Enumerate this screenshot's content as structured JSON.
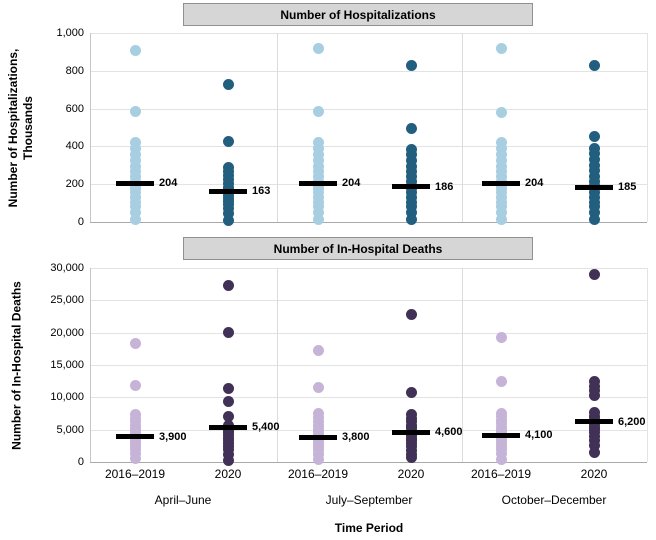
{
  "xaxis": {
    "title": "Time Period",
    "tick_labels": [
      "2016–2019",
      "2020",
      "2016–2019",
      "2020",
      "2016–2019",
      "2020"
    ],
    "group_labels": [
      "April–June",
      "July–September",
      "October–December"
    ]
  },
  "colors": {
    "light_blue": "#A8CEE2",
    "dark_blue": "#225F7E",
    "light_purple": "#C6B4D8",
    "dark_purple": "#413156",
    "median_line": "#000000",
    "title_box_fill": "#D6D6D6",
    "title_box_border": "#909090"
  },
  "chart_data": [
    {
      "type": "scatter",
      "subtype": "strip-dot-plot",
      "title": "Number of Hospitalizations",
      "ylabel_lines": [
        "Number of Hospitalizations,",
        "Thousands"
      ],
      "ylim": [
        0,
        1000
      ],
      "grid": true,
      "yticks": [
        {
          "v": 0,
          "label": "0"
        },
        {
          "v": 200,
          "label": "200"
        },
        {
          "v": 400,
          "label": "400"
        },
        {
          "v": 600,
          "label": "600"
        },
        {
          "v": 800,
          "label": "800"
        },
        {
          "v": 1000,
          "label": "1,000"
        }
      ],
      "groups": [
        {
          "label": "April–June",
          "strips": [
            {
              "series": "2016–2019",
              "color": "#A8CEE2",
              "median": 204,
              "median_label": "204",
              "values": [
                910,
                585,
                420,
                390,
                355,
                325,
                295,
                265,
                240,
                215,
                195,
                175,
                155,
                130,
                105,
                80,
                50,
                15
              ]
            },
            {
              "series": "2020",
              "color": "#225F7E",
              "median": 163,
              "median_label": "163",
              "values": [
                730,
                425,
                290,
                265,
                245,
                225,
                205,
                185,
                170,
                155,
                140,
                125,
                110,
                90,
                70,
                45,
                10
              ]
            }
          ]
        },
        {
          "label": "July–September",
          "strips": [
            {
              "series": "2016–2019",
              "color": "#A8CEE2",
              "median": 204,
              "median_label": "204",
              "values": [
                920,
                585,
                420,
                390,
                355,
                325,
                295,
                265,
                240,
                215,
                195,
                175,
                155,
                130,
                105,
                80,
                50,
                15
              ]
            },
            {
              "series": "2020",
              "color": "#225F7E",
              "median": 186,
              "median_label": "186",
              "values": [
                830,
                495,
                385,
                355,
                325,
                295,
                265,
                240,
                215,
                195,
                175,
                155,
                130,
                105,
                80,
                50,
                15
              ]
            }
          ]
        },
        {
          "label": "October–December",
          "strips": [
            {
              "series": "2016–2019",
              "color": "#A8CEE2",
              "median": 204,
              "median_label": "204",
              "values": [
                920,
                580,
                420,
                390,
                355,
                325,
                295,
                265,
                240,
                215,
                195,
                175,
                155,
                130,
                105,
                80,
                50,
                15
              ]
            },
            {
              "series": "2020",
              "color": "#225F7E",
              "median": 185,
              "median_label": "185",
              "values": [
                830,
                450,
                390,
                360,
                330,
                300,
                270,
                240,
                215,
                195,
                175,
                155,
                130,
                105,
                80,
                50,
                15
              ]
            }
          ]
        }
      ]
    },
    {
      "type": "scatter",
      "subtype": "strip-dot-plot",
      "title": "Number of In-Hospital Deaths",
      "ylabel_lines": [
        "Number of In-Hospital Deaths"
      ],
      "ylim": [
        0,
        30000
      ],
      "grid": true,
      "yticks": [
        {
          "v": 0,
          "label": "0"
        },
        {
          "v": 5000,
          "label": "5,000"
        },
        {
          "v": 10000,
          "label": "10,000"
        },
        {
          "v": 15000,
          "label": "15,000"
        },
        {
          "v": 20000,
          "label": "20,000"
        },
        {
          "v": 25000,
          "label": "25,000"
        },
        {
          "v": 30000,
          "label": "30,000"
        }
      ],
      "groups": [
        {
          "label": "April–June",
          "strips": [
            {
              "series": "2016–2019",
              "color": "#C6B4D8",
              "median": 3900,
              "median_label": "3,900",
              "values": [
                18300,
                11900,
                7300,
                6700,
                6200,
                5700,
                5200,
                4800,
                4400,
                4000,
                3600,
                3200,
                2800,
                2400,
                1900,
                1300,
                500
              ]
            },
            {
              "series": "2020",
              "color": "#413156",
              "median": 5400,
              "median_label": "5,400",
              "values": [
                27300,
                20000,
                11300,
                9300,
                7100,
                5700,
                5300,
                4900,
                4500,
                4100,
                3700,
                3300,
                2900,
                2400,
                1900,
                1200,
                300
              ]
            }
          ]
        },
        {
          "label": "July–September",
          "strips": [
            {
              "series": "2016–2019",
              "color": "#C6B4D8",
              "median": 3800,
              "median_label": "3,800",
              "values": [
                17200,
                11500,
                7500,
                6900,
                6300,
                5700,
                5200,
                4700,
                4300,
                3900,
                3500,
                3100,
                2700,
                2300,
                1800,
                1200,
                400
              ]
            },
            {
              "series": "2020",
              "color": "#413156",
              "median": 4600,
              "median_label": "4,600",
              "values": [
                22800,
                10800,
                7300,
                6700,
                6200,
                5700,
                5300,
                4900,
                4500,
                4100,
                3700,
                3300,
                2900,
                2400,
                1800,
                1200,
                700
              ]
            }
          ]
        },
        {
          "label": "October–December",
          "strips": [
            {
              "series": "2016–2019",
              "color": "#C6B4D8",
              "median": 4100,
              "median_label": "4,100",
              "values": [
                19300,
                12500,
                7500,
                7000,
                6400,
                5900,
                5400,
                4900,
                4500,
                4100,
                3700,
                3300,
                2900,
                2400,
                1900,
                1300,
                400
              ]
            },
            {
              "series": "2020",
              "color": "#413156",
              "median": 6200,
              "median_label": "6,200",
              "values": [
                29000,
                12400,
                11700,
                11000,
                10300,
                7600,
                7100,
                6600,
                6200,
                5800,
                5400,
                5000,
                4500,
                4000,
                3400,
                2500,
                1500
              ]
            }
          ]
        }
      ]
    }
  ]
}
